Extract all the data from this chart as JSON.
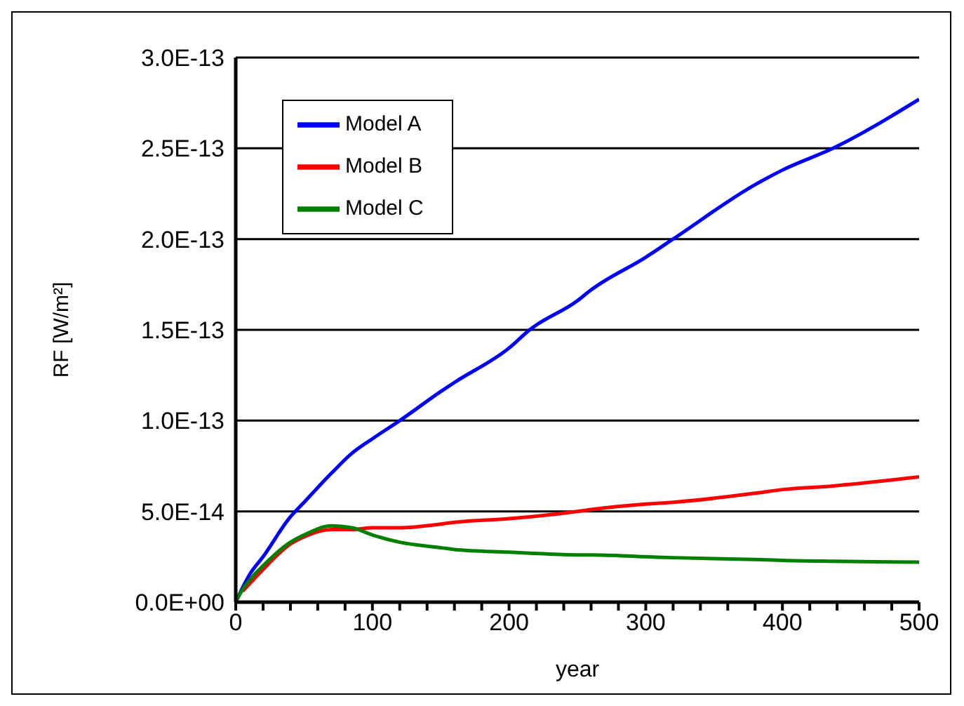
{
  "chart_data": {
    "type": "line",
    "xlabel": "year",
    "ylabel": "RF [W/m²]",
    "x": [
      0,
      5,
      10,
      20,
      40,
      50,
      70,
      85,
      100,
      120,
      150,
      160,
      200,
      215,
      250,
      260,
      300,
      320,
      380,
      400,
      437,
      500
    ],
    "series": [
      {
        "name": "Model A",
        "color": "#0000ff",
        "values": [
          0,
          8e-15,
          1.5e-14,
          2.5e-14,
          4.7e-14,
          5.5e-14,
          7.1e-14,
          8.2e-14,
          9e-14,
          1e-13,
          1.16e-13,
          1.21e-13,
          1.4e-13,
          1.5e-13,
          1.66e-13,
          1.72e-13,
          1.9e-13,
          2e-13,
          2.3e-13,
          2.38e-13,
          2.5e-13,
          2.77e-13
        ]
      },
      {
        "name": "Model B",
        "color": "#ff0000",
        "values": [
          null,
          6e-15,
          1e-14,
          1.8e-14,
          3.2e-14,
          3.6e-14,
          4e-14,
          4e-14,
          4.1e-14,
          4.1e-14,
          4.3e-14,
          4.4e-14,
          4.6e-14,
          4.7e-14,
          5e-14,
          5.1e-14,
          5.4e-14,
          5.5e-14,
          6e-14,
          6.2e-14,
          6.4e-14,
          6.9e-14
        ]
      },
      {
        "name": "Model C",
        "color": "#008000",
        "values": [
          0,
          7e-15,
          1.2e-14,
          2e-14,
          3.3e-14,
          3.7e-14,
          4.2e-14,
          4.1e-14,
          3.7e-14,
          3.3e-14,
          3e-14,
          2.9e-14,
          2.75e-14,
          2.7e-14,
          2.6e-14,
          2.6e-14,
          2.5e-14,
          2.45e-14,
          2.35e-14,
          2.3e-14,
          2.25e-14,
          2.2e-14
        ]
      }
    ],
    "xlim": [
      0,
      500
    ],
    "xticks": [
      0,
      {
        "value": 20,
        "label": null
      },
      {
        "value": 40,
        "label": null
      },
      {
        "value": 60,
        "label": null
      },
      {
        "value": 80,
        "label": null
      },
      100,
      {
        "value": 120,
        "label": null
      },
      {
        "value": 140,
        "label": null
      },
      {
        "value": 160,
        "label": null
      },
      {
        "value": 180,
        "label": null
      },
      200,
      {
        "value": 220,
        "label": null
      },
      {
        "value": 240,
        "label": null
      },
      {
        "value": 260,
        "label": null
      },
      {
        "value": 280,
        "label": null
      },
      300,
      {
        "value": 320,
        "label": null
      },
      {
        "value": 340,
        "label": null
      },
      {
        "value": 360,
        "label": null
      },
      {
        "value": 380,
        "label": null
      },
      400,
      {
        "value": 420,
        "label": null
      },
      {
        "value": 440,
        "label": null
      },
      {
        "value": 460,
        "label": null
      },
      {
        "value": 480,
        "label": null
      },
      500
    ],
    "ylim": [
      0,
      3e-13
    ],
    "yticks": [
      {
        "value": 0,
        "label": "0.0E+00"
      },
      {
        "value": 5e-14,
        "label": "5.0E-14"
      },
      {
        "value": 1e-13,
        "label": "1.0E-13"
      },
      {
        "value": 1.5e-13,
        "label": "1.5E-13"
      },
      {
        "value": 2e-13,
        "label": "2.0E-13"
      },
      {
        "value": 2.5e-13,
        "label": "2.5E-13"
      },
      {
        "value": 3e-13,
        "label": "3.0E-13"
      }
    ],
    "grid": "y",
    "legend": "top left",
    "marker": "none",
    "line_style": "solid"
  }
}
